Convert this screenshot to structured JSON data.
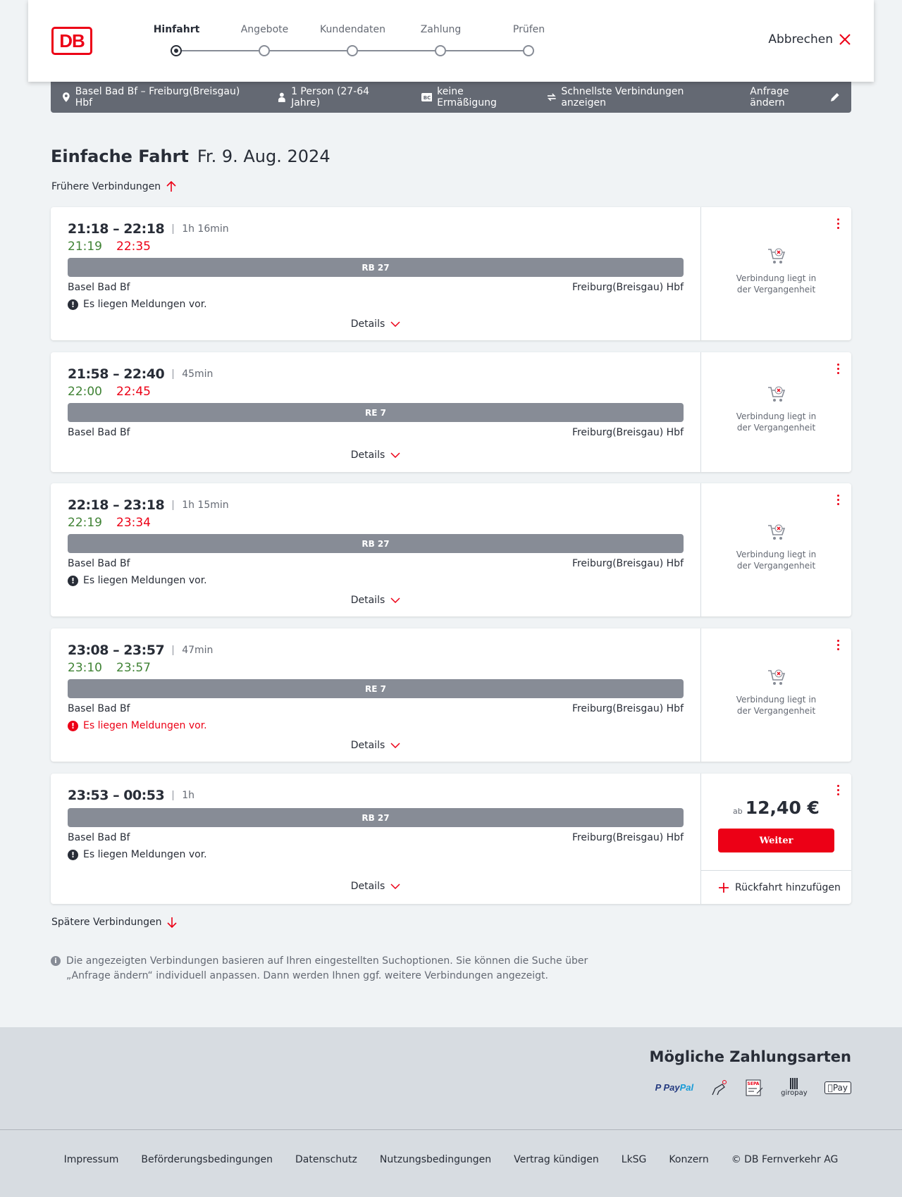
{
  "header": {
    "logo": "DB",
    "steps": [
      "Hinfahrt",
      "Angebote",
      "Kundendaten",
      "Zahlung",
      "Prüfen"
    ],
    "active_step": 0,
    "cancel": "Abbrechen"
  },
  "infobar": {
    "route": "Basel Bad Bf – Freiburg(Breisgau) Hbf",
    "persons": "1 Person (27-64 Jahre)",
    "discount": "keine Ermäßigung",
    "fastest": "Schnellste Verbindungen anzeigen",
    "edit": "Anfrage ändern"
  },
  "title": {
    "type": "Einfache Fahrt",
    "date": "Fr. 9. Aug. 2024"
  },
  "earlier": "Frühere Verbindungen",
  "later": "Spätere Verbindungen",
  "details_label": "Details",
  "past_label": "Verbindung liegt in der Vergangenheit",
  "connections": [
    {
      "time": "21:18 – 22:18",
      "duration": "1h 16min",
      "rt_dep": "21:19",
      "rt_arr": "22:35",
      "rt_dep_color": "green",
      "rt_arr_color": "red",
      "train": "RB 27",
      "from": "Basel Bad Bf",
      "to": "Freiburg(Breisgau) Hbf",
      "message": "Es liegen Meldungen vor.",
      "message_red": false
    },
    {
      "time": "21:58 – 22:40",
      "duration": "45min",
      "rt_dep": "22:00",
      "rt_arr": "22:45",
      "rt_dep_color": "green",
      "rt_arr_color": "red",
      "train": "RE 7",
      "from": "Basel Bad Bf",
      "to": "Freiburg(Breisgau) Hbf",
      "message": null
    },
    {
      "time": "22:18 – 23:18",
      "duration": "1h 15min",
      "rt_dep": "22:19",
      "rt_arr": "23:34",
      "rt_dep_color": "green",
      "rt_arr_color": "red",
      "train": "RB 27",
      "from": "Basel Bad Bf",
      "to": "Freiburg(Breisgau) Hbf",
      "message": "Es liegen Meldungen vor.",
      "message_red": false
    },
    {
      "time": "23:08 – 23:57",
      "duration": "47min",
      "rt_dep": "23:10",
      "rt_arr": "23:57",
      "rt_dep_color": "green",
      "rt_arr_color": "green",
      "train": "RE 7",
      "from": "Basel Bad Bf",
      "to": "Freiburg(Breisgau) Hbf",
      "message": "Es liegen Meldungen vor.",
      "message_red": true
    },
    {
      "time": "23:53 – 00:53",
      "duration": "1h",
      "train": "RB 27",
      "from": "Basel Bad Bf",
      "to": "Freiburg(Breisgau) Hbf",
      "message": "Es liegen Meldungen vor.",
      "message_red": false,
      "price_prefix": "ab",
      "price": "12,40 €",
      "button": "Weiter",
      "return": "Rückfahrt hinzufügen"
    }
  ],
  "note": "Die angezeigten Verbindungen basieren auf Ihren eingestellten Suchoptionen. Sie können die Suche über „Anfrage ändern“ individuell anpassen. Dann werden Ihnen ggf. weitere Verbindungen angezeigt.",
  "footer": {
    "payment_title": "Mögliche Zahlungsarten",
    "payments": [
      "PayPal",
      "Kreditkarte",
      "SEPA",
      "giropay",
      "Apple Pay"
    ],
    "links": [
      "Impressum",
      "Beförderungsbedingungen",
      "Datenschutz",
      "Nutzungsbedingungen",
      "Vertrag kündigen",
      "LkSG",
      "Konzern",
      "© DB Fernverkehr AG"
    ]
  },
  "colors": {
    "brand_red": "#ec0016",
    "green": "#408335",
    "bar": "#878c96",
    "infobar": "#646973"
  }
}
